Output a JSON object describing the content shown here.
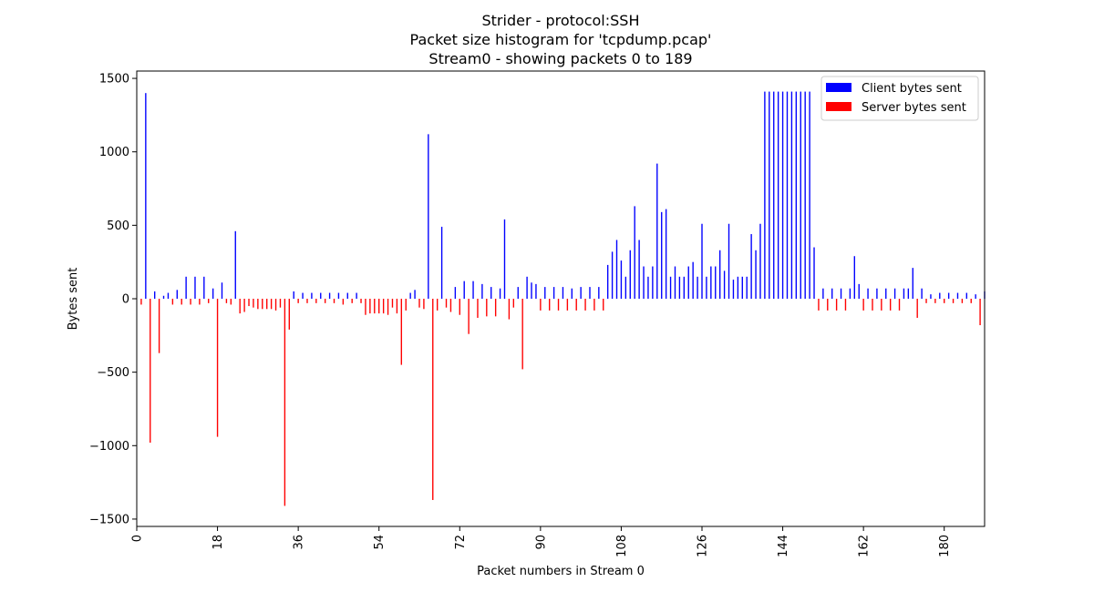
{
  "chart_data": {
    "type": "bar",
    "title_lines": [
      "Strider - protocol:SSH",
      "Packet size histogram for 'tcpdump.pcap'",
      "Stream0 - showing packets 0 to 189"
    ],
    "xlabel": "Packet numbers in Stream 0",
    "ylabel": "Bytes sent",
    "xlim": [
      0,
      189
    ],
    "ylim": [
      -1550,
      1550
    ],
    "x_ticks": [
      0,
      18,
      36,
      54,
      72,
      90,
      108,
      126,
      144,
      162,
      180
    ],
    "y_ticks": [
      -1500,
      -1000,
      -500,
      0,
      500,
      1000,
      1500
    ],
    "y_tick_labels": [
      "−1500",
      "−1000",
      "−500",
      "0",
      "500",
      "1000",
      "1500"
    ],
    "grid": false,
    "legend_position": "top-right",
    "series": [
      {
        "name": "Client bytes sent",
        "color": "#0000ff",
        "points": [
          [
            2,
            1400
          ],
          [
            4,
            50
          ],
          [
            6,
            20
          ],
          [
            7,
            40
          ],
          [
            9,
            60
          ],
          [
            11,
            150
          ],
          [
            13,
            150
          ],
          [
            15,
            150
          ],
          [
            17,
            70
          ],
          [
            19,
            110
          ],
          [
            22,
            460
          ],
          [
            35,
            50
          ],
          [
            37,
            40
          ],
          [
            39,
            40
          ],
          [
            41,
            40
          ],
          [
            43,
            40
          ],
          [
            45,
            40
          ],
          [
            47,
            40
          ],
          [
            49,
            40
          ],
          [
            61,
            40
          ],
          [
            62,
            60
          ],
          [
            65,
            1120
          ],
          [
            68,
            490
          ],
          [
            71,
            80
          ],
          [
            73,
            120
          ],
          [
            75,
            120
          ],
          [
            77,
            100
          ],
          [
            79,
            80
          ],
          [
            81,
            70
          ],
          [
            82,
            540
          ],
          [
            85,
            80
          ],
          [
            87,
            150
          ],
          [
            88,
            110
          ],
          [
            89,
            100
          ],
          [
            91,
            80
          ],
          [
            93,
            80
          ],
          [
            95,
            80
          ],
          [
            97,
            70
          ],
          [
            99,
            80
          ],
          [
            101,
            80
          ],
          [
            103,
            80
          ],
          [
            105,
            230
          ],
          [
            106,
            320
          ],
          [
            107,
            400
          ],
          [
            108,
            260
          ],
          [
            109,
            150
          ],
          [
            110,
            330
          ],
          [
            111,
            630
          ],
          [
            112,
            400
          ],
          [
            113,
            220
          ],
          [
            114,
            150
          ],
          [
            115,
            220
          ],
          [
            116,
            920
          ],
          [
            117,
            590
          ],
          [
            118,
            610
          ],
          [
            119,
            150
          ],
          [
            120,
            220
          ],
          [
            121,
            150
          ],
          [
            122,
            150
          ],
          [
            123,
            220
          ],
          [
            124,
            250
          ],
          [
            125,
            150
          ],
          [
            126,
            510
          ],
          [
            127,
            150
          ],
          [
            128,
            220
          ],
          [
            129,
            220
          ],
          [
            130,
            330
          ],
          [
            131,
            190
          ],
          [
            132,
            510
          ],
          [
            133,
            130
          ],
          [
            134,
            150
          ],
          [
            135,
            150
          ],
          [
            136,
            150
          ],
          [
            137,
            440
          ],
          [
            138,
            330
          ],
          [
            139,
            510
          ],
          [
            140,
            1410
          ],
          [
            141,
            1410
          ],
          [
            142,
            1410
          ],
          [
            143,
            1410
          ],
          [
            144,
            1410
          ],
          [
            145,
            1410
          ],
          [
            146,
            1410
          ],
          [
            147,
            1410
          ],
          [
            148,
            1410
          ],
          [
            149,
            1410
          ],
          [
            150,
            1410
          ],
          [
            151,
            350
          ],
          [
            153,
            70
          ],
          [
            155,
            70
          ],
          [
            157,
            70
          ],
          [
            159,
            70
          ],
          [
            160,
            290
          ],
          [
            161,
            100
          ],
          [
            163,
            70
          ],
          [
            165,
            70
          ],
          [
            167,
            70
          ],
          [
            169,
            70
          ],
          [
            171,
            70
          ],
          [
            172,
            70
          ],
          [
            173,
            210
          ],
          [
            175,
            70
          ],
          [
            177,
            30
          ],
          [
            179,
            40
          ],
          [
            181,
            40
          ],
          [
            183,
            40
          ],
          [
            185,
            40
          ],
          [
            187,
            30
          ],
          [
            189,
            50
          ]
        ]
      },
      {
        "name": "Server bytes sent",
        "color": "#ff0000",
        "points": [
          [
            1,
            -40
          ],
          [
            3,
            -980
          ],
          [
            5,
            -370
          ],
          [
            8,
            -40
          ],
          [
            10,
            -40
          ],
          [
            12,
            -40
          ],
          [
            14,
            -40
          ],
          [
            16,
            -30
          ],
          [
            18,
            -940
          ],
          [
            20,
            -30
          ],
          [
            21,
            -40
          ],
          [
            23,
            -100
          ],
          [
            24,
            -90
          ],
          [
            25,
            -50
          ],
          [
            26,
            -60
          ],
          [
            27,
            -70
          ],
          [
            28,
            -70
          ],
          [
            29,
            -70
          ],
          [
            30,
            -70
          ],
          [
            31,
            -80
          ],
          [
            32,
            -60
          ],
          [
            33,
            -1410
          ],
          [
            34,
            -210
          ],
          [
            36,
            -30
          ],
          [
            38,
            -30
          ],
          [
            40,
            -30
          ],
          [
            42,
            -30
          ],
          [
            44,
            -30
          ],
          [
            46,
            -40
          ],
          [
            48,
            -30
          ],
          [
            50,
            -30
          ],
          [
            51,
            -110
          ],
          [
            52,
            -100
          ],
          [
            53,
            -100
          ],
          [
            54,
            -100
          ],
          [
            55,
            -100
          ],
          [
            56,
            -110
          ],
          [
            57,
            -60
          ],
          [
            58,
            -100
          ],
          [
            59,
            -450
          ],
          [
            60,
            -80
          ],
          [
            63,
            -60
          ],
          [
            64,
            -70
          ],
          [
            66,
            -1370
          ],
          [
            67,
            -80
          ],
          [
            69,
            -60
          ],
          [
            70,
            -90
          ],
          [
            72,
            -110
          ],
          [
            74,
            -240
          ],
          [
            76,
            -130
          ],
          [
            78,
            -120
          ],
          [
            80,
            -120
          ],
          [
            83,
            -140
          ],
          [
            84,
            -60
          ],
          [
            86,
            -480
          ],
          [
            90,
            -80
          ],
          [
            92,
            -80
          ],
          [
            94,
            -80
          ],
          [
            96,
            -80
          ],
          [
            98,
            -80
          ],
          [
            100,
            -80
          ],
          [
            102,
            -80
          ],
          [
            104,
            -80
          ],
          [
            152,
            -80
          ],
          [
            154,
            -80
          ],
          [
            156,
            -80
          ],
          [
            158,
            -80
          ],
          [
            162,
            -80
          ],
          [
            164,
            -80
          ],
          [
            166,
            -80
          ],
          [
            168,
            -80
          ],
          [
            170,
            -80
          ],
          [
            174,
            -130
          ],
          [
            176,
            -30
          ],
          [
            178,
            -30
          ],
          [
            180,
            -30
          ],
          [
            182,
            -30
          ],
          [
            184,
            -30
          ],
          [
            186,
            -30
          ],
          [
            188,
            -180
          ]
        ]
      }
    ]
  }
}
